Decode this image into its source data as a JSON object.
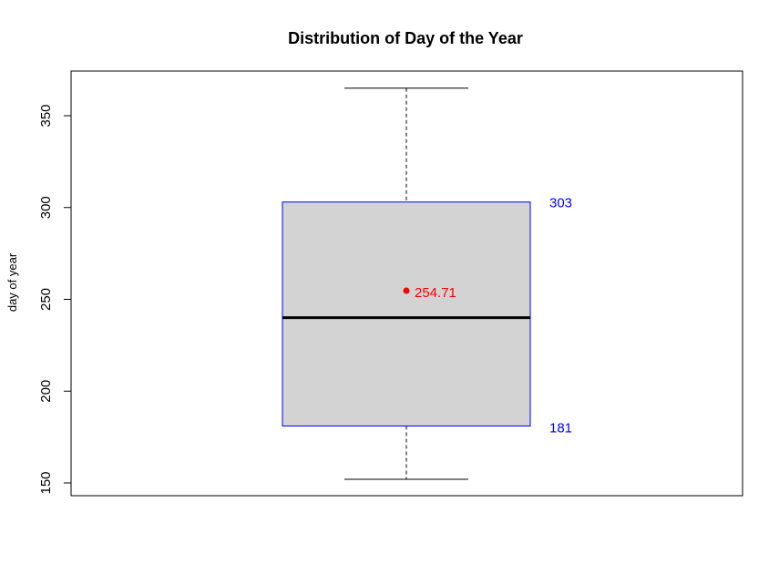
{
  "chart_data": {
    "type": "box",
    "title": "Distribution of Day of the Year",
    "xlabel": "",
    "ylabel": "day of year",
    "ylim": [
      145,
      370
    ],
    "yticks": [
      150,
      200,
      250,
      300,
      350
    ],
    "grid": false,
    "box": {
      "min": 152,
      "q1": 181,
      "median": 240,
      "q3": 303,
      "max": 365,
      "mean": 254.71
    },
    "annotations": {
      "q3_label": "303",
      "q1_label": "181",
      "mean_label": "254.71"
    },
    "colors": {
      "box_fill": "#d3d3d3",
      "box_border": "#0000ff",
      "whisker": "#000000",
      "median": "#000000",
      "mean_point": "#ff0000",
      "annotation_quartiles": "#0000ff",
      "annotation_mean": "#ff0000"
    }
  }
}
